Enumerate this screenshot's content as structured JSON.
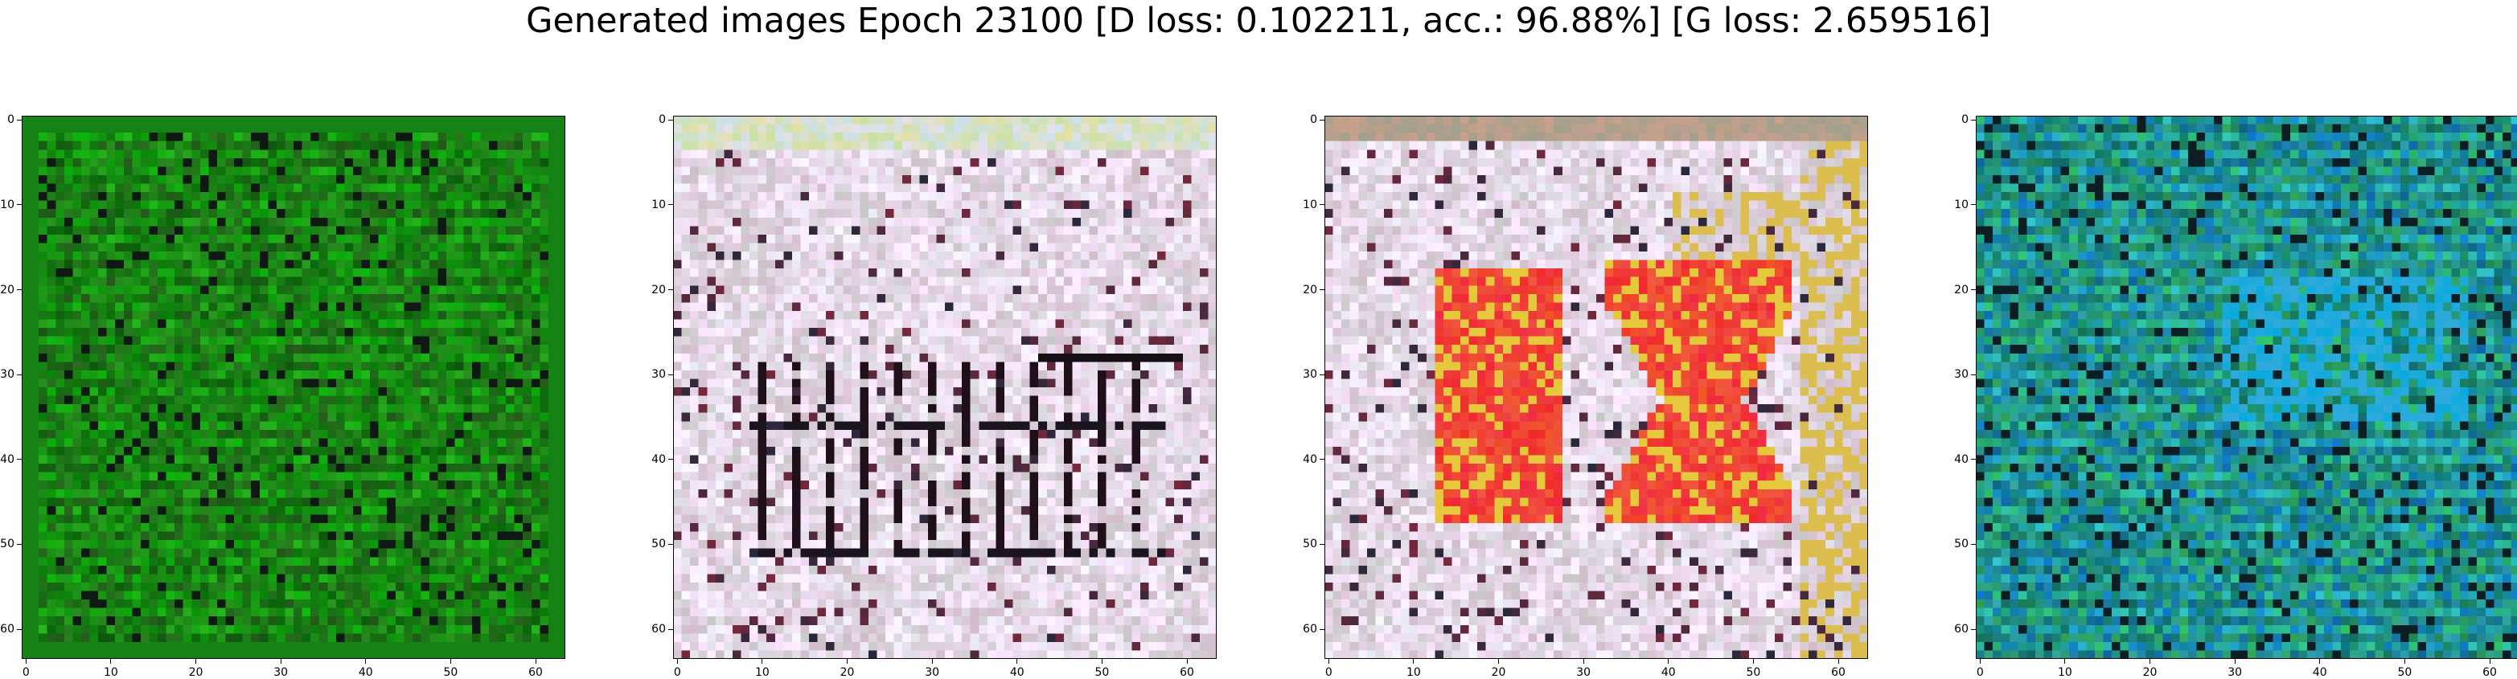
{
  "figure": {
    "title": "Generated images Epoch 23100 [D loss: 0.102211, acc.: 96.88%] [G loss: 2.659516]"
  },
  "axis": {
    "xticks": [
      "0",
      "10",
      "20",
      "30",
      "40",
      "50",
      "60"
    ],
    "yticks": [
      "0",
      "10",
      "20",
      "30",
      "40",
      "50",
      "60"
    ],
    "range": [
      0,
      63
    ]
  },
  "panels": [
    {
      "name": "generated-image-1",
      "palette": "green",
      "base": "#1b7a1b"
    },
    {
      "name": "generated-image-2",
      "palette": "pale-lavender",
      "base": "#ddd6e6"
    },
    {
      "name": "generated-image-3",
      "palette": "pale-with-red-yellow-pattern",
      "base": "#d9cfd8"
    },
    {
      "name": "generated-image-4",
      "palette": "teal",
      "base": "#1f8f8a"
    }
  ]
}
